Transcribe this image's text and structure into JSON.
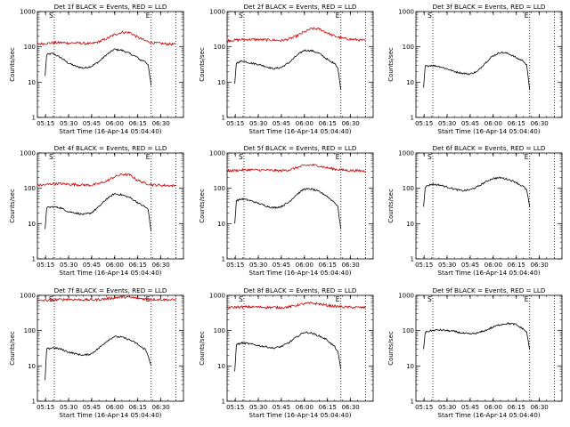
{
  "chart_data": [
    {
      "type": "line",
      "title": "Det 1f BLACK = Events, RED = LLD",
      "ylabel": "Counts/sec",
      "xlabel": "Start Time (16-Apr-14 05:04:40)",
      "xticks": [
        "05:15",
        "05:30",
        "05:45",
        "06:00",
        "06:15",
        "06:30"
      ],
      "yscale": "log",
      "ylim": [
        1,
        1000
      ],
      "yticks": [
        "1",
        "10",
        "100",
        "1000"
      ],
      "xlim_minutes": [
        5,
        100
      ],
      "markers": [
        {
          "x": 16,
          "label": "S"
        },
        {
          "x": 79,
          "label": "E"
        }
      ],
      "extra_vline": 95,
      "series": [
        {
          "color": "#000000",
          "x": [
            10,
            11,
            15,
            20,
            25,
            30,
            35,
            40,
            45,
            50,
            55,
            60,
            65,
            70,
            72,
            75,
            77,
            79
          ],
          "y": [
            15,
            60,
            65,
            50,
            35,
            28,
            25,
            28,
            38,
            60,
            85,
            80,
            65,
            50,
            42,
            40,
            30,
            8
          ]
        },
        {
          "color": "#cc0000",
          "x": [
            5,
            10,
            15,
            20,
            25,
            30,
            35,
            40,
            45,
            50,
            55,
            60,
            65,
            70,
            75,
            80,
            85,
            90,
            95
          ],
          "y": [
            120,
            125,
            130,
            132,
            128,
            130,
            125,
            122,
            140,
            170,
            220,
            260,
            255,
            190,
            150,
            130,
            125,
            120,
            118
          ]
        }
      ]
    },
    {
      "type": "line",
      "title": "Det 2f BLACK = Events, RED = LLD",
      "ylabel": "Counts/sec",
      "xlabel": "Start Time (16-Apr-14 05:04:40)",
      "xticks": [
        "05:15",
        "05:30",
        "05:45",
        "06:00",
        "06:15",
        "06:30"
      ],
      "yscale": "log",
      "ylim": [
        1,
        1000
      ],
      "yticks": [
        "1",
        "10",
        "100",
        "1000"
      ],
      "xlim_minutes": [
        5,
        100
      ],
      "markers": [
        {
          "x": 16,
          "label": "S"
        },
        {
          "x": 79,
          "label": "E"
        }
      ],
      "extra_vline": 95,
      "series": [
        {
          "color": "#000000",
          "x": [
            10,
            11,
            15,
            20,
            25,
            30,
            35,
            40,
            45,
            50,
            55,
            60,
            65,
            70,
            72,
            75,
            77,
            79
          ],
          "y": [
            9,
            35,
            40,
            35,
            32,
            28,
            24,
            26,
            35,
            55,
            80,
            78,
            65,
            45,
            38,
            35,
            25,
            6
          ]
        },
        {
          "color": "#cc0000",
          "x": [
            5,
            10,
            15,
            20,
            25,
            30,
            35,
            40,
            45,
            50,
            55,
            60,
            65,
            70,
            75,
            80,
            85,
            90,
            95
          ],
          "y": [
            150,
            155,
            160,
            162,
            160,
            158,
            155,
            150,
            165,
            200,
            260,
            330,
            320,
            250,
            200,
            175,
            165,
            158,
            150
          ]
        }
      ]
    },
    {
      "type": "line",
      "title": "Det 3f BLACK = Events, RED = LLD",
      "ylabel": "Counts/sec",
      "xlabel": "Start Time (16-Apr-14 05:04:40)",
      "xticks": [
        "05:15",
        "05:30",
        "05:45",
        "06:00",
        "06:15",
        "06:30"
      ],
      "yscale": "log",
      "ylim": [
        1,
        1000
      ],
      "yticks": [
        "1",
        "10",
        "100",
        "1000"
      ],
      "xlim_minutes": [
        5,
        100
      ],
      "markers": [
        {
          "x": 16,
          "label": "S"
        },
        {
          "x": 79,
          "label": "E"
        }
      ],
      "extra_vline": 95,
      "series": [
        {
          "color": "#000000",
          "x": [
            10,
            11,
            15,
            20,
            25,
            30,
            35,
            40,
            45,
            50,
            55,
            60,
            65,
            70,
            72,
            75,
            77,
            79
          ],
          "y": [
            7,
            28,
            30,
            28,
            24,
            20,
            18,
            17,
            20,
            35,
            55,
            70,
            65,
            50,
            45,
            40,
            30,
            6
          ]
        }
      ]
    },
    {
      "type": "line",
      "title": "Det 4f BLACK = Events, RED = LLD",
      "ylabel": "Counts/sec",
      "xlabel": "Start Time (16-Apr-14 05:04:40)",
      "xticks": [
        "05:15",
        "05:30",
        "05:45",
        "06:00",
        "06:15",
        "06:30"
      ],
      "yscale": "log",
      "ylim": [
        1,
        1000
      ],
      "yticks": [
        "1",
        "10",
        "100",
        "1000"
      ],
      "xlim_minutes": [
        5,
        100
      ],
      "markers": [
        {
          "x": 16,
          "label": "S"
        },
        {
          "x": 79,
          "label": "E"
        }
      ],
      "extra_vline": 95,
      "series": [
        {
          "color": "#000000",
          "x": [
            10,
            11,
            15,
            20,
            25,
            30,
            35,
            40,
            45,
            50,
            55,
            60,
            65,
            70,
            72,
            75,
            77,
            79
          ],
          "y": [
            7,
            28,
            30,
            28,
            22,
            20,
            18,
            20,
            30,
            50,
            70,
            65,
            55,
            40,
            35,
            30,
            25,
            6
          ]
        },
        {
          "color": "#cc0000",
          "x": [
            5,
            10,
            15,
            20,
            25,
            30,
            35,
            40,
            45,
            50,
            55,
            60,
            65,
            70,
            75,
            80,
            85,
            90,
            95
          ],
          "y": [
            120,
            125,
            135,
            135,
            130,
            128,
            125,
            122,
            135,
            160,
            210,
            250,
            240,
            170,
            140,
            125,
            122,
            120,
            118
          ]
        }
      ]
    },
    {
      "type": "line",
      "title": "Det 5f BLACK = Events, RED = LLD",
      "ylabel": "Counts/sec",
      "xlabel": "Start Time (16-Apr-14 05:04:40)",
      "xticks": [
        "05:15",
        "05:30",
        "05:45",
        "06:00",
        "06:15",
        "06:30"
      ],
      "yscale": "log",
      "ylim": [
        1,
        1000
      ],
      "yticks": [
        "1",
        "10",
        "100",
        "1000"
      ],
      "xlim_minutes": [
        5,
        100
      ],
      "markers": [
        {
          "x": 16,
          "label": "S"
        },
        {
          "x": 79,
          "label": "E"
        }
      ],
      "extra_vline": 95,
      "series": [
        {
          "color": "#000000",
          "x": [
            10,
            11,
            15,
            20,
            25,
            30,
            35,
            40,
            45,
            50,
            55,
            60,
            65,
            70,
            72,
            75,
            77,
            79
          ],
          "y": [
            10,
            45,
            50,
            45,
            38,
            32,
            28,
            30,
            40,
            65,
            95,
            95,
            80,
            60,
            50,
            40,
            30,
            7
          ]
        },
        {
          "color": "#cc0000",
          "x": [
            5,
            10,
            15,
            20,
            25,
            30,
            35,
            40,
            45,
            50,
            55,
            60,
            65,
            70,
            75,
            80,
            85,
            90,
            95
          ],
          "y": [
            310,
            320,
            330,
            335,
            330,
            325,
            320,
            315,
            330,
            380,
            440,
            460,
            430,
            380,
            350,
            330,
            320,
            315,
            310
          ]
        }
      ]
    },
    {
      "type": "line",
      "title": "Det 6f BLACK = Events, RED = LLD",
      "ylabel": "Counts/sec",
      "xlabel": "Start Time (16-Apr-14 05:04:40)",
      "xticks": [
        "05:15",
        "05:30",
        "05:45",
        "06:00",
        "06:15",
        "06:30"
      ],
      "yscale": "log",
      "ylim": [
        1,
        1000
      ],
      "yticks": [
        "1",
        "10",
        "100",
        "1000"
      ],
      "xlim_minutes": [
        5,
        100
      ],
      "markers": [
        {
          "x": 16,
          "label": "S"
        },
        {
          "x": 79,
          "label": "E"
        }
      ],
      "extra_vline": 95,
      "series": [
        {
          "color": "#000000",
          "x": [
            10,
            11,
            15,
            20,
            25,
            30,
            35,
            40,
            45,
            50,
            55,
            60,
            65,
            70,
            72,
            75,
            77,
            79
          ],
          "y": [
            30,
            110,
            130,
            125,
            110,
            95,
            85,
            90,
            110,
            150,
            190,
            200,
            180,
            150,
            130,
            110,
            90,
            30
          ]
        }
      ]
    },
    {
      "type": "line",
      "title": "Det 7f BLACK = Events, RED = LLD",
      "ylabel": "Counts/sec",
      "xlabel": "Start Time (16-Apr-14 05:04:40)",
      "xticks": [
        "05:15",
        "05:30",
        "05:45",
        "06:00",
        "06:15",
        "06:30"
      ],
      "yscale": "log",
      "ylim": [
        1,
        1000
      ],
      "yticks": [
        "1",
        "10",
        "100",
        "1000"
      ],
      "xlim_minutes": [
        5,
        100
      ],
      "markers": [
        {
          "x": 16,
          "label": "S"
        },
        {
          "x": 79,
          "label": "E"
        }
      ],
      "extra_vline": 95,
      "series": [
        {
          "color": "#000000",
          "x": [
            10,
            11,
            15,
            20,
            25,
            30,
            35,
            40,
            45,
            50,
            55,
            60,
            65,
            70,
            72,
            75,
            77,
            79
          ],
          "y": [
            4,
            30,
            33,
            30,
            25,
            22,
            20,
            22,
            32,
            50,
            68,
            65,
            55,
            42,
            35,
            30,
            20,
            10
          ]
        },
        {
          "color": "#cc0000",
          "x": [
            5,
            10,
            15,
            20,
            25,
            30,
            35,
            40,
            45,
            50,
            55,
            60,
            65,
            70,
            75,
            80,
            85,
            90,
            95
          ],
          "y": [
            700,
            720,
            740,
            760,
            770,
            760,
            750,
            740,
            760,
            800,
            850,
            900,
            880,
            830,
            790,
            770,
            760,
            750,
            740
          ]
        }
      ]
    },
    {
      "type": "line",
      "title": "Det 8f BLACK = Events, RED = LLD",
      "ylabel": "Counts/sec",
      "xlabel": "Start Time (16-Apr-14 05:04:40)",
      "xticks": [
        "05:15",
        "05:30",
        "05:45",
        "06:00",
        "06:15",
        "06:30"
      ],
      "yscale": "log",
      "ylim": [
        1,
        1000
      ],
      "yticks": [
        "1",
        "10",
        "100",
        "1000"
      ],
      "xlim_minutes": [
        5,
        100
      ],
      "markers": [
        {
          "x": 16,
          "label": "S"
        },
        {
          "x": 79,
          "label": "E"
        }
      ],
      "extra_vline": 95,
      "series": [
        {
          "color": "#000000",
          "x": [
            10,
            11,
            15,
            20,
            25,
            30,
            35,
            40,
            45,
            50,
            55,
            60,
            65,
            70,
            72,
            75,
            77,
            79
          ],
          "y": [
            7,
            40,
            45,
            42,
            38,
            35,
            32,
            35,
            45,
            65,
            90,
            85,
            70,
            55,
            45,
            35,
            25,
            8
          ]
        },
        {
          "color": "#cc0000",
          "x": [
            5,
            10,
            15,
            20,
            25,
            30,
            35,
            40,
            45,
            50,
            55,
            60,
            65,
            70,
            75,
            80,
            85,
            90,
            95
          ],
          "y": [
            450,
            460,
            470,
            470,
            465,
            460,
            455,
            450,
            470,
            520,
            580,
            600,
            570,
            520,
            490,
            470,
            460,
            455,
            450
          ]
        }
      ]
    },
    {
      "type": "line",
      "title": "Det 9f BLACK = Events, RED = LLD",
      "ylabel": "Counts/sec",
      "xlabel": "Start Time (16-Apr-14 05:04:40)",
      "xticks": [
        "05:15",
        "05:30",
        "05:45",
        "06:00",
        "06:15",
        "06:30"
      ],
      "yscale": "log",
      "ylim": [
        1,
        1000
      ],
      "yticks": [
        "1",
        "10",
        "100",
        "1000"
      ],
      "xlim_minutes": [
        5,
        100
      ],
      "markers": [
        {
          "x": 16,
          "label": "S"
        },
        {
          "x": 79,
          "label": "E"
        }
      ],
      "extra_vline": 95,
      "series": [
        {
          "color": "#000000",
          "x": [
            10,
            11,
            15,
            20,
            25,
            30,
            35,
            40,
            45,
            50,
            55,
            60,
            65,
            70,
            72,
            75,
            77,
            79
          ],
          "y": [
            30,
            90,
            100,
            105,
            100,
            95,
            85,
            80,
            85,
            100,
            125,
            150,
            160,
            150,
            130,
            110,
            90,
            30
          ]
        }
      ]
    }
  ]
}
